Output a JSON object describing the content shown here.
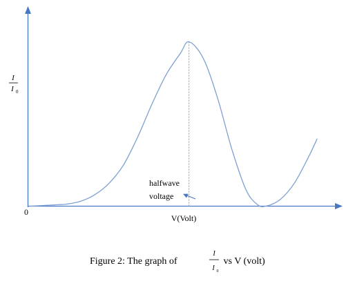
{
  "chart_data": {
    "type": "line",
    "ylabel": {
      "numerator": "I",
      "denominator": "I",
      "denominator_subscript": "0"
    },
    "xlabel": "V(Volt)",
    "origin_label": "0",
    "annotation": {
      "line1": "halfwave",
      "line2": "voltage"
    },
    "caption": {
      "prefix": "Figure 2: The graph of ",
      "numerator": "I",
      "denominator": "I",
      "denominator_subscript": "0",
      "suffix": " vs V (volt)"
    },
    "x_ticks": [],
    "y_ticks": [],
    "series": [
      {
        "points": [
          [
            0,
            0
          ],
          [
            10,
            0.4
          ],
          [
            20,
            0.9
          ],
          [
            26,
            1.2
          ],
          [
            36,
            3
          ],
          [
            46,
            7
          ],
          [
            56,
            14
          ],
          [
            66,
            25
          ],
          [
            76,
            42
          ],
          [
            86,
            62
          ],
          [
            96,
            80
          ],
          [
            106,
            93
          ],
          [
            112,
            100
          ],
          [
            122,
            90
          ],
          [
            132,
            66
          ],
          [
            142,
            35
          ],
          [
            152,
            10
          ],
          [
            160,
            1
          ],
          [
            166,
            0
          ],
          [
            176,
            4
          ],
          [
            186,
            14
          ],
          [
            196,
            30
          ],
          [
            202,
            41
          ]
        ]
      }
    ],
    "peak_marker_x": 112,
    "xlim": [
      -1,
      215
    ],
    "ylim": [
      0,
      117
    ]
  },
  "colors": {
    "axis": "#4a77c4",
    "curve": "#7d9fd2",
    "text": "#000000"
  }
}
